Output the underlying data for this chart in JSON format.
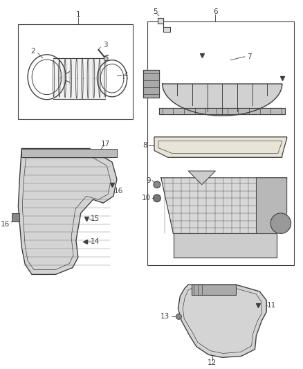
{
  "bg_color": "#ffffff",
  "line_color": "#404040",
  "fig_width": 4.38,
  "fig_height": 5.33,
  "dpi": 100
}
